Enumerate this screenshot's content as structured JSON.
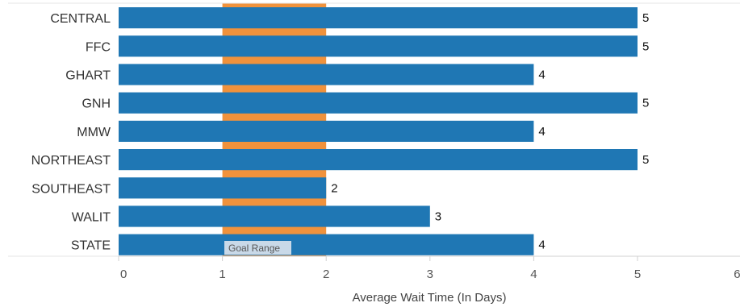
{
  "chart_data": {
    "type": "bar",
    "orientation": "horizontal",
    "categories": [
      "CENTRAL",
      "FFC",
      "GHART",
      "GNH",
      "MMW",
      "NORTHEAST",
      "SOUTHEAST",
      "WALIT",
      "STATE"
    ],
    "values": [
      5,
      5,
      4,
      5,
      4,
      5,
      2,
      3,
      4
    ],
    "data_labels": [
      "5",
      "5",
      "4",
      "5",
      "4",
      "5",
      "2",
      "3",
      "4"
    ],
    "xlabel": "Average Wait Time (In Days)",
    "ylabel": "",
    "xlim": [
      0,
      6
    ],
    "x_ticks": [
      "0",
      "1",
      "2",
      "3",
      "4",
      "5",
      "6"
    ],
    "grid": false,
    "bar_color": "#1f77b4",
    "goal_range": {
      "label": "Goal Range",
      "from": 1,
      "to": 2,
      "color": "#f0923c"
    }
  }
}
